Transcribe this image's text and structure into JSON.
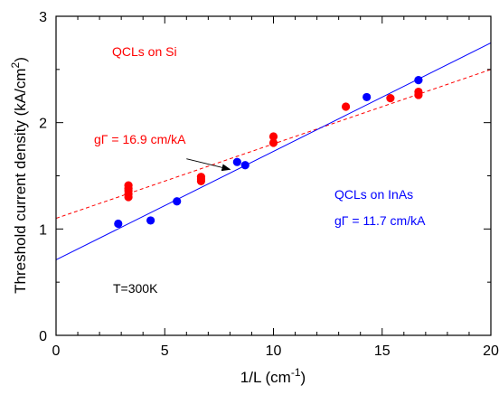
{
  "chart_data": {
    "type": "scatter",
    "title": "",
    "xlabel": {
      "main": "1/L (cm",
      "sup": "-1",
      "tail": ")"
    },
    "ylabel": {
      "main": "Threshold current density (kA/cm",
      "sup": "2",
      "tail": ")"
    },
    "xlim": [
      0,
      20
    ],
    "ylim": [
      0,
      3
    ],
    "xticks": [
      0,
      5,
      10,
      15,
      20
    ],
    "yticks": [
      0,
      1,
      2,
      3
    ],
    "grid": false,
    "series": [
      {
        "name": "QCLs on Si",
        "color": "#ff0000",
        "marker": "circle",
        "points": [
          [
            3.33,
            1.3
          ],
          [
            3.33,
            1.33
          ],
          [
            3.33,
            1.36
          ],
          [
            3.33,
            1.38
          ],
          [
            3.33,
            1.41
          ],
          [
            6.67,
            1.45
          ],
          [
            6.67,
            1.47
          ],
          [
            6.67,
            1.49
          ],
          [
            10.0,
            1.81
          ],
          [
            10.0,
            1.87
          ],
          [
            13.33,
            2.15
          ],
          [
            15.38,
            2.23
          ],
          [
            16.67,
            2.26
          ],
          [
            16.67,
            2.29
          ]
        ],
        "fit": {
          "x": [
            0,
            20
          ],
          "y": [
            1.1,
            2.5
          ],
          "style": "dashed",
          "color": "#ff0000"
        },
        "fit_label": "gΓ = 16.9 cm/kA"
      },
      {
        "name": "QCLs on InAs",
        "color": "#0000ff",
        "marker": "circle",
        "points": [
          [
            2.86,
            1.05
          ],
          [
            4.35,
            1.08
          ],
          [
            5.56,
            1.26
          ],
          [
            8.33,
            1.63
          ],
          [
            8.7,
            1.6
          ],
          [
            14.29,
            2.24
          ],
          [
            16.67,
            2.4
          ]
        ],
        "fit": {
          "x": [
            0,
            20
          ],
          "y": [
            0.71,
            2.75
          ],
          "style": "solid",
          "color": "#0000ff"
        },
        "fit_label": "gΓ = 11.7 cm/kA"
      }
    ],
    "annotations": [
      {
        "text": "T=300K",
        "color": "#000000"
      }
    ],
    "arrow": {
      "from": [
        6.0,
        1.66
      ],
      "to": [
        8.0,
        1.56
      ]
    }
  }
}
